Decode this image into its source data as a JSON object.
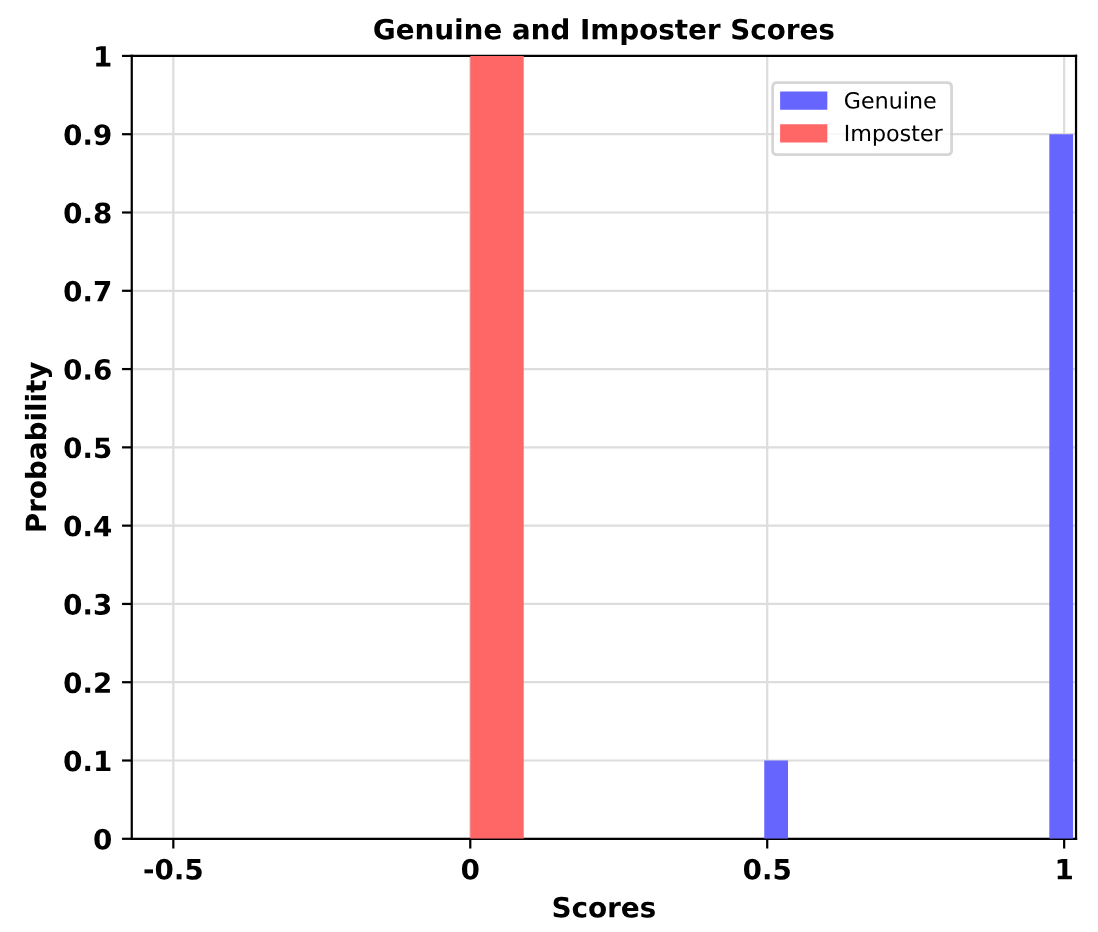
{
  "chart_data": {
    "type": "histogram",
    "title": "Genuine and Imposter Scores",
    "xlabel": "Scores",
    "ylabel": "Probability",
    "bins": [
      0,
      0.09,
      0.495,
      0.535,
      0.975,
      1.015
    ],
    "series": [
      {
        "name": "Genuine",
        "color": "#6666ff",
        "values": [
          0,
          0,
          0.1,
          0,
          0.9
        ]
      },
      {
        "name": "Imposter",
        "color": "#ff6666",
        "values": [
          1,
          0,
          0,
          0,
          0
        ]
      }
    ],
    "xlim": [
      -0.57,
      1.02
    ],
    "xticks": [
      -0.5,
      0,
      0.5,
      1
    ],
    "ylim": [
      0,
      1
    ],
    "yticks": [
      0,
      0.1,
      0.2,
      0.3,
      0.4,
      0.5,
      0.6,
      0.7,
      0.8,
      0.9,
      1
    ],
    "grid": true,
    "legend": "top right"
  }
}
